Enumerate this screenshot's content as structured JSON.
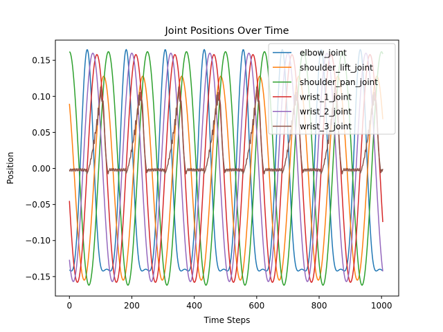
{
  "chart_data": {
    "type": "line",
    "title": "Joint Positions Over Time",
    "xlabel": "Time Steps",
    "ylabel": "Position",
    "xlim": [
      -45,
      1055
    ],
    "ylim": [
      -0.177,
      0.178
    ],
    "xticks": [
      0,
      200,
      400,
      600,
      800,
      1000
    ],
    "yticks": [
      -0.15,
      -0.1,
      -0.05,
      0.0,
      0.05,
      0.1,
      0.15
    ],
    "ytick_labels": [
      "−0.15",
      "−0.10",
      "−0.05",
      "0.00",
      "0.05",
      "0.10",
      "0.15"
    ],
    "grid": false,
    "legend_position": "top-right",
    "x_range": [
      0,
      1005
    ],
    "period": 125,
    "series": [
      {
        "name": "elbow_joint",
        "color": "#1f77b4",
        "shape": "elbow",
        "phase_step": 57,
        "min": -0.155,
        "max": 0.165
      },
      {
        "name": "shoulder_lift_joint",
        "color": "#ff7f0e",
        "shape": "sine",
        "phase_step": 110,
        "min": -0.155,
        "max": 0.128
      },
      {
        "name": "shoulder_pan_joint",
        "color": "#2ca02c",
        "shape": "sine",
        "phase_step": 0,
        "min": -0.162,
        "max": 0.162
      },
      {
        "name": "wrist_1_joint",
        "color": "#d62728",
        "shape": "sine",
        "phase_step": 88,
        "min": -0.158,
        "max": 0.158
      },
      {
        "name": "wrist_2_joint",
        "color": "#9467bd",
        "shape": "sine",
        "phase_step": 75,
        "min": -0.157,
        "max": 0.16
      },
      {
        "name": "wrist_3_joint",
        "color": "#8c564b",
        "shape": "wrist3",
        "phase_step": 0,
        "min": -0.008,
        "max": 0.113
      }
    ]
  }
}
